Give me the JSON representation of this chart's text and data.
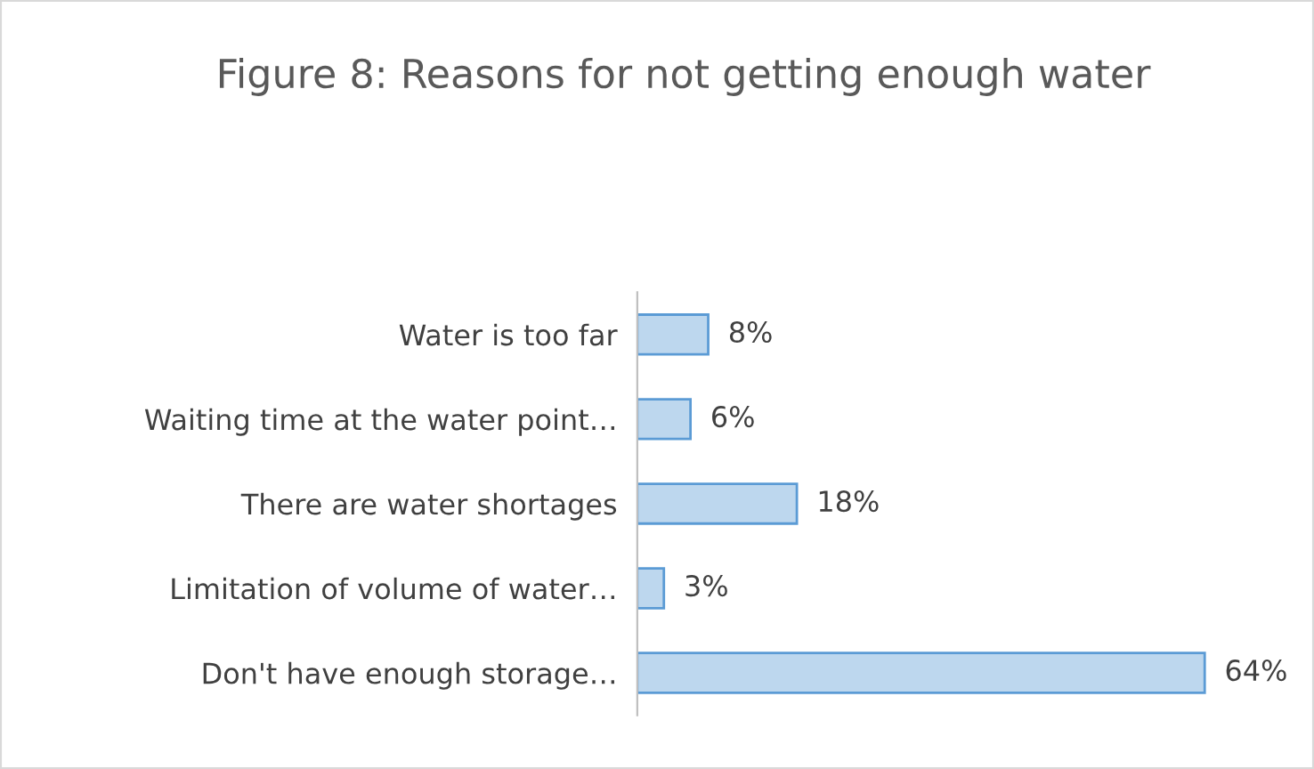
{
  "chart_data": {
    "type": "bar",
    "orientation": "horizontal",
    "title": "Figure 8: Reasons for not getting enough water",
    "categories": [
      "Water is too far",
      "Waiting time at the water point…",
      "There are water shortages",
      "Limitation of volume of water…",
      "Don't have enough storage…"
    ],
    "values": [
      8,
      6,
      18,
      3,
      64
    ],
    "color": "#bdd7ee",
    "data_labels": true,
    "value_labels": [
      "8%",
      "6%",
      "18%",
      "3%",
      "64%"
    ],
    "grid": false,
    "legend": false
  }
}
